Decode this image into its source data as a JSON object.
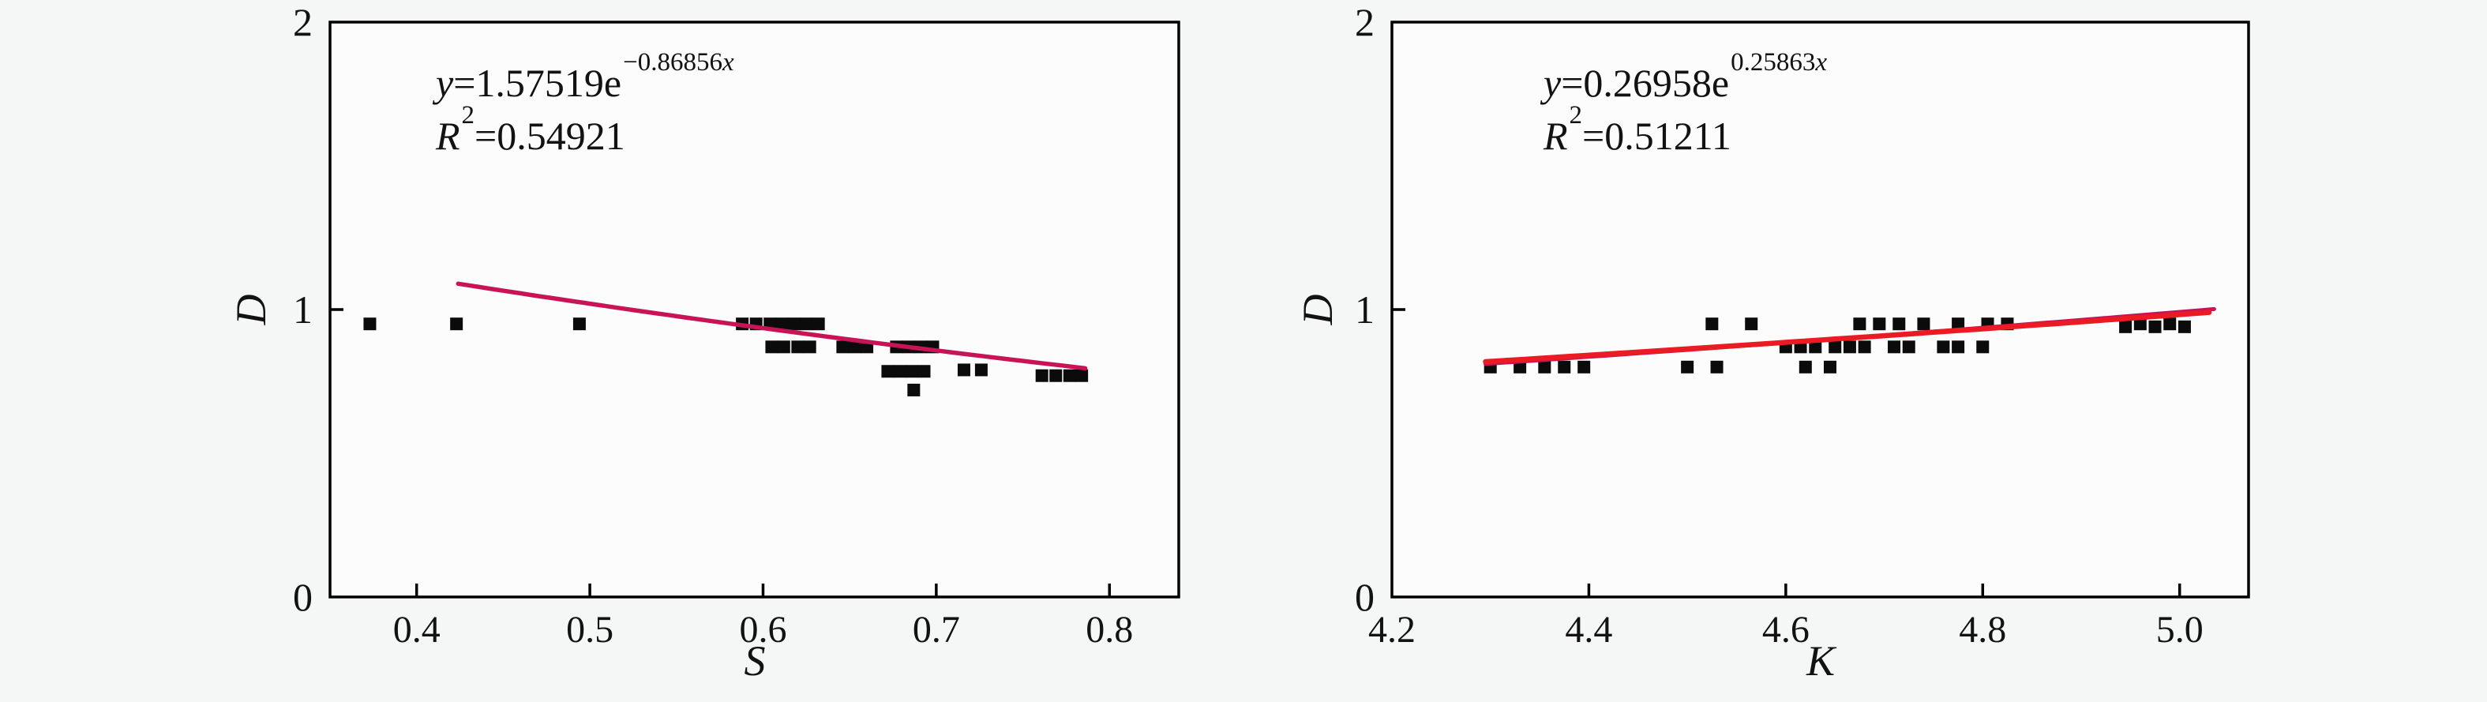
{
  "page": {
    "background": "#f5f6f6",
    "plot_background": "#fcfcfd",
    "axis_color": "#000000",
    "marker_color": "#0b0b0b",
    "marker_size": 16
  },
  "chart_data": [
    {
      "type": "scatter",
      "xlabel": "S",
      "ylabel": "D",
      "xlim": [
        0.35,
        0.84
      ],
      "ylim": [
        0,
        2
      ],
      "xticks": [
        0.4,
        0.5,
        0.6,
        0.7,
        0.8
      ],
      "xtick_labels": [
        "0.4",
        "0.5",
        "0.6",
        "0.7",
        "0.8"
      ],
      "yticks": [
        0,
        1,
        2
      ],
      "ytick_labels": [
        "0",
        "1",
        "2"
      ],
      "grid": false,
      "legend": "none",
      "equation": {
        "lhs": "y",
        "mid": "=1.57519e",
        "exp": "−0.86856",
        "exp_var": "x"
      },
      "r_squared": {
        "base": "R",
        "sup": "2",
        "rest": "=0.54921"
      },
      "fit_lines": [
        {
          "a": 1.57519,
          "b": -0.86856,
          "x_start": 0.424,
          "x_end": 0.786,
          "color": "#c81457",
          "width": 5.5
        }
      ],
      "points": [
        [
          0.373,
          0.95
        ],
        [
          0.423,
          0.95
        ],
        [
          0.494,
          0.95
        ],
        [
          0.588,
          0.95
        ],
        [
          0.596,
          0.95
        ],
        [
          0.604,
          0.95
        ],
        [
          0.611,
          0.95
        ],
        [
          0.618,
          0.95
        ],
        [
          0.625,
          0.95
        ],
        [
          0.632,
          0.95
        ],
        [
          0.605,
          0.87
        ],
        [
          0.612,
          0.87
        ],
        [
          0.62,
          0.87
        ],
        [
          0.627,
          0.87
        ],
        [
          0.646,
          0.87
        ],
        [
          0.653,
          0.87
        ],
        [
          0.66,
          0.87
        ],
        [
          0.677,
          0.87
        ],
        [
          0.684,
          0.87
        ],
        [
          0.691,
          0.87
        ],
        [
          0.698,
          0.87
        ],
        [
          0.672,
          0.785
        ],
        [
          0.679,
          0.785
        ],
        [
          0.686,
          0.785
        ],
        [
          0.693,
          0.785
        ],
        [
          0.687,
          0.72
        ],
        [
          0.716,
          0.79
        ],
        [
          0.726,
          0.79
        ],
        [
          0.761,
          0.77
        ],
        [
          0.769,
          0.77
        ],
        [
          0.777,
          0.77
        ],
        [
          0.784,
          0.77
        ]
      ]
    },
    {
      "type": "scatter",
      "xlabel": "K",
      "ylabel": "D",
      "xlim": [
        4.2,
        5.07
      ],
      "ylim": [
        0,
        2
      ],
      "xticks": [
        4.2,
        4.4,
        4.6,
        4.8,
        5.0
      ],
      "xtick_labels": [
        "4.2",
        "4.4",
        "4.6",
        "4.8",
        "5.0"
      ],
      "yticks": [
        0,
        1,
        2
      ],
      "ytick_labels": [
        "0",
        "1",
        "2"
      ],
      "grid": false,
      "legend": "none",
      "equation": {
        "lhs": "y",
        "mid": "=0.26958e",
        "exp": "0.25863",
        "exp_var": "x"
      },
      "r_squared": {
        "base": "R",
        "sup": "2",
        "rest": "=0.51211"
      },
      "fit_lines": [
        {
          "a": 0.2385,
          "b": 0.285,
          "x_start": 4.295,
          "x_end": 5.035,
          "color": "#c81457",
          "width": 5
        },
        {
          "a": 0.26958,
          "b": 0.25863,
          "x_start": 4.295,
          "x_end": 5.03,
          "color": "#eb1b23",
          "width": 6.5
        }
      ],
      "points": [
        [
          4.3,
          0.8
        ],
        [
          4.33,
          0.8
        ],
        [
          4.355,
          0.8
        ],
        [
          4.375,
          0.8
        ],
        [
          4.395,
          0.8
        ],
        [
          4.5,
          0.8
        ],
        [
          4.53,
          0.8
        ],
        [
          4.62,
          0.8
        ],
        [
          4.645,
          0.8
        ],
        [
          4.525,
          0.95
        ],
        [
          4.565,
          0.95
        ],
        [
          4.675,
          0.95
        ],
        [
          4.695,
          0.95
        ],
        [
          4.715,
          0.95
        ],
        [
          4.74,
          0.95
        ],
        [
          4.775,
          0.95
        ],
        [
          4.805,
          0.95
        ],
        [
          4.825,
          0.95
        ],
        [
          4.6,
          0.87
        ],
        [
          4.615,
          0.87
        ],
        [
          4.63,
          0.87
        ],
        [
          4.65,
          0.87
        ],
        [
          4.665,
          0.87
        ],
        [
          4.68,
          0.87
        ],
        [
          4.71,
          0.87
        ],
        [
          4.725,
          0.87
        ],
        [
          4.76,
          0.87
        ],
        [
          4.775,
          0.87
        ],
        [
          4.8,
          0.87
        ],
        [
          4.945,
          0.94
        ],
        [
          4.96,
          0.95
        ],
        [
          4.975,
          0.94
        ],
        [
          4.99,
          0.95
        ],
        [
          5.005,
          0.94
        ]
      ]
    }
  ]
}
